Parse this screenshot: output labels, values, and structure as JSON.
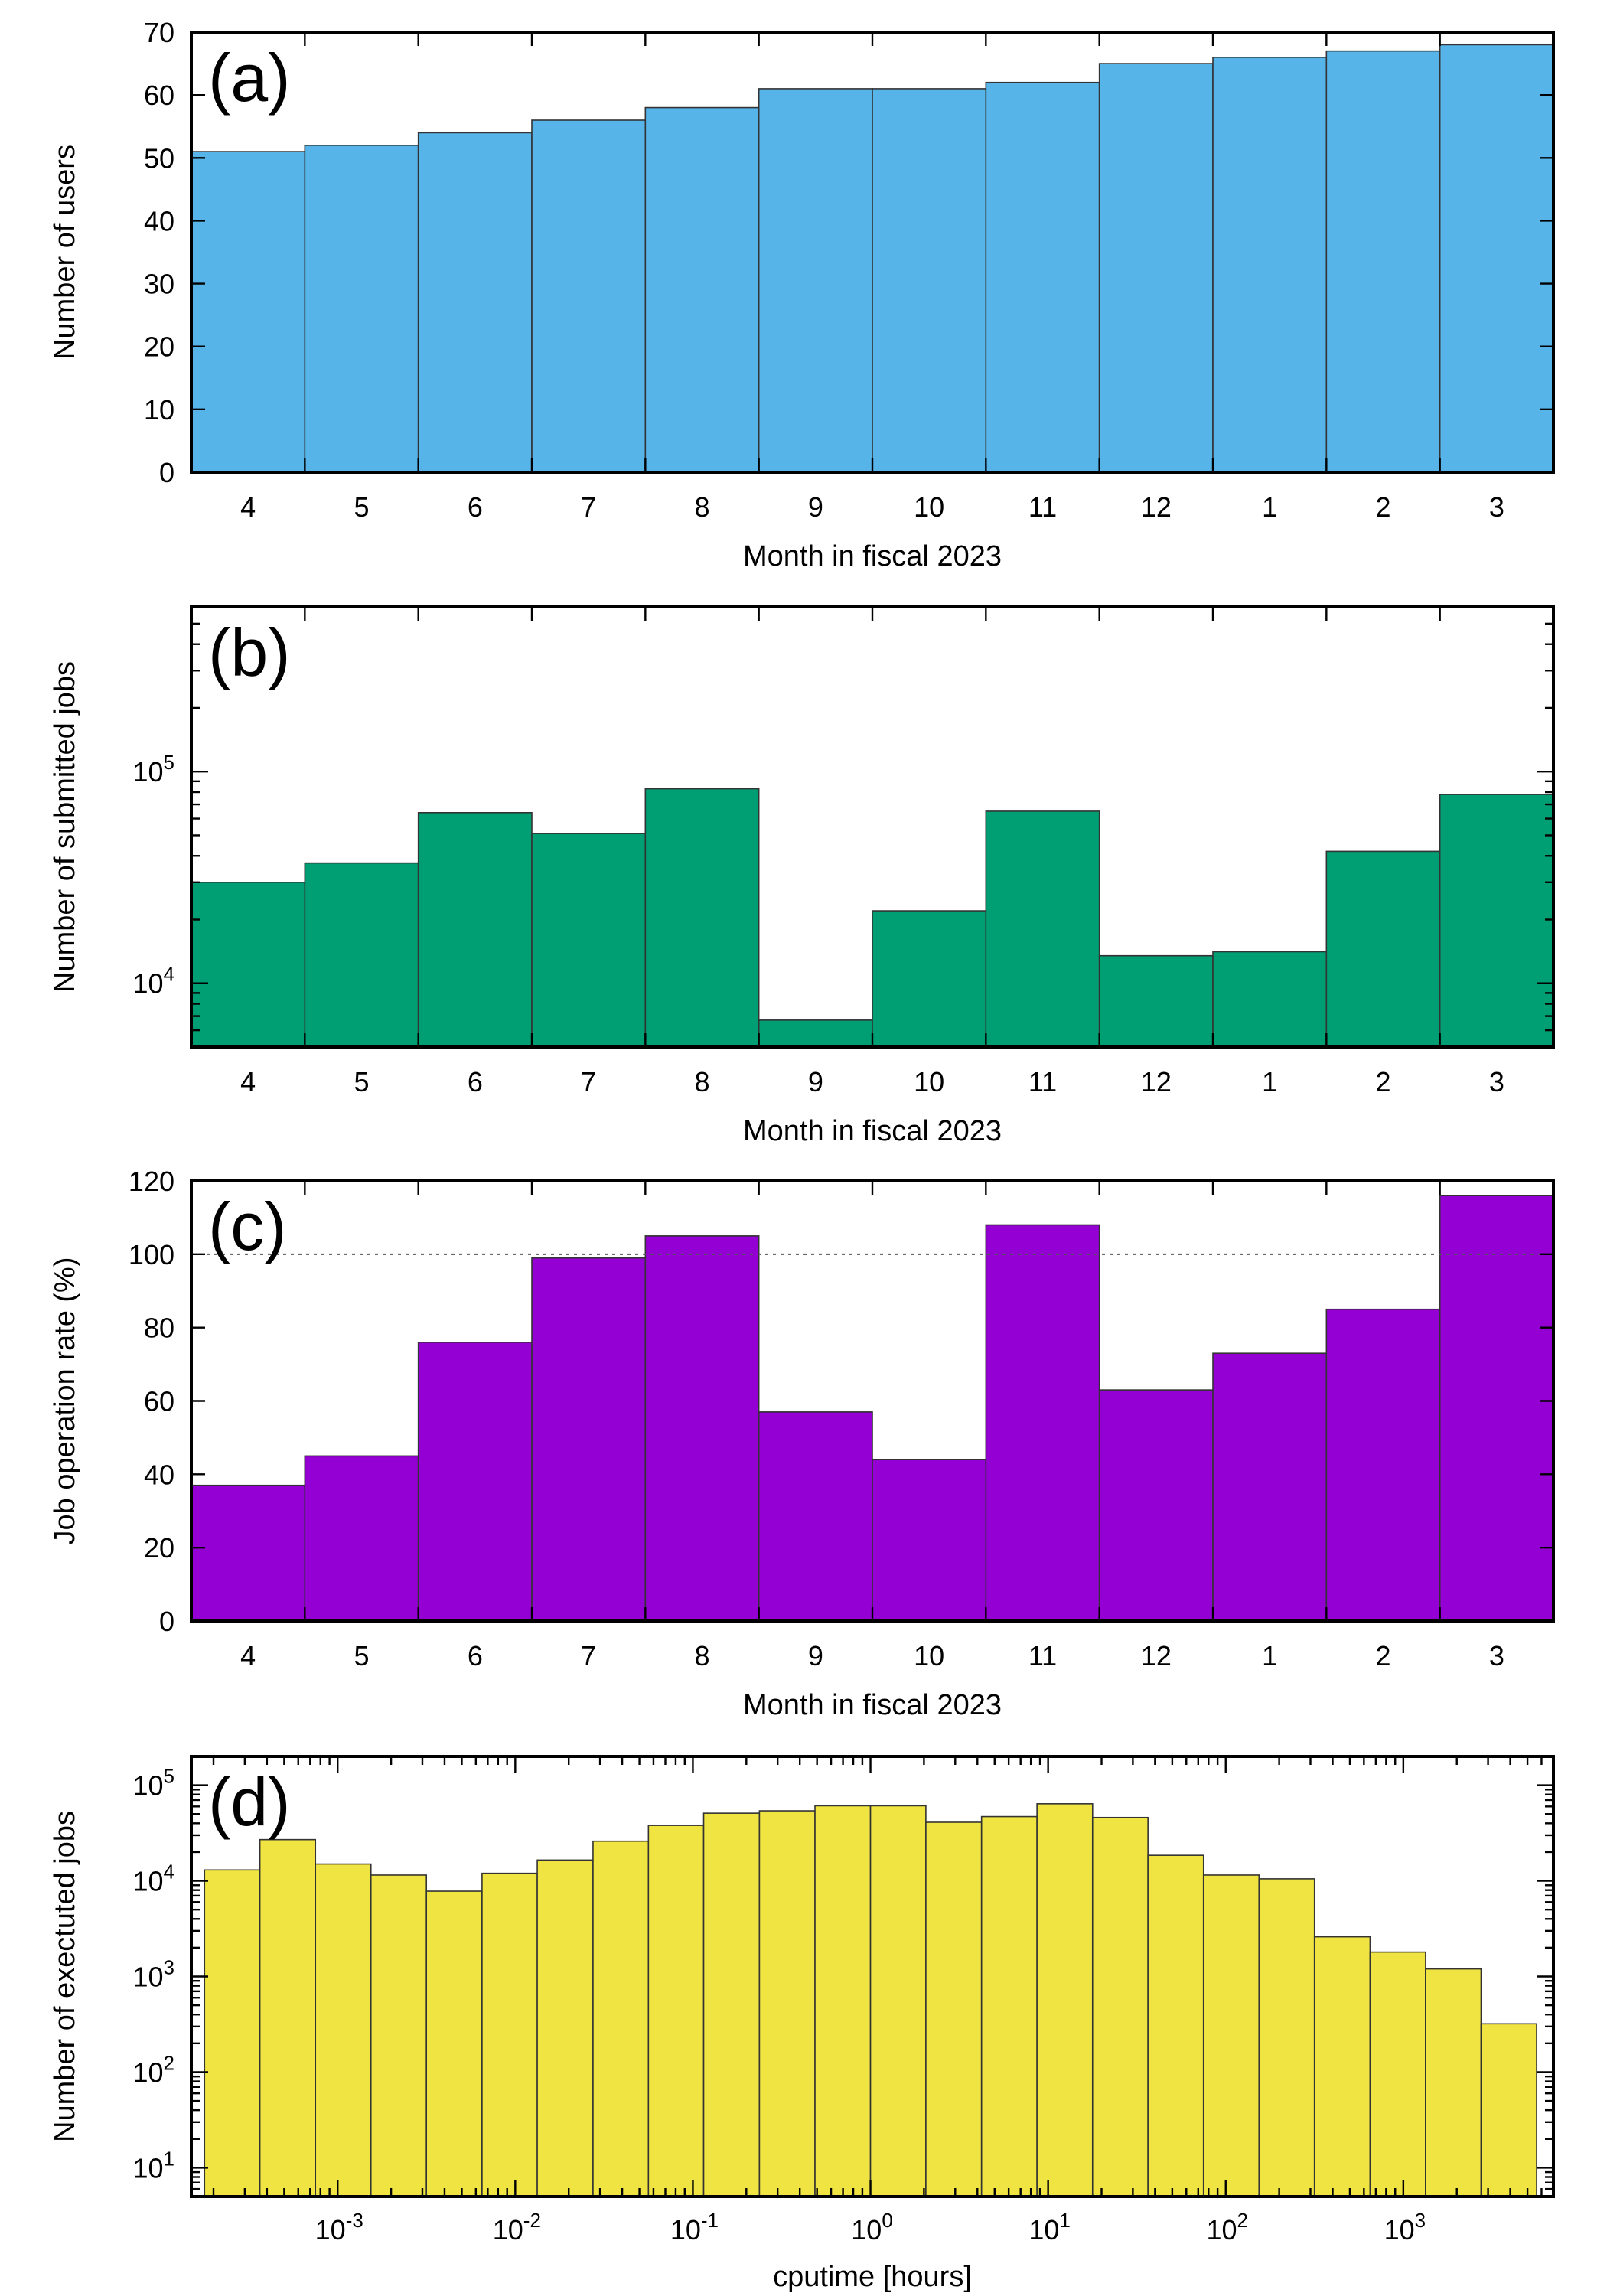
{
  "chart_data": [
    {
      "type": "bar",
      "panel_label": "(a)",
      "categories": [
        "4",
        "5",
        "6",
        "7",
        "8",
        "9",
        "10",
        "11",
        "12",
        "1",
        "2",
        "3"
      ],
      "series": [
        {
          "values": [
            51,
            52,
            54,
            56,
            58,
            61,
            61,
            62,
            65,
            66,
            67,
            68
          ]
        }
      ],
      "xlabel": "Month in fiscal 2023",
      "ylabel": "Number of users",
      "ylim": [
        0,
        70
      ],
      "yticks": [
        0,
        10,
        20,
        30,
        40,
        50,
        60,
        70
      ],
      "yscale": "linear",
      "color": "#56b4e9",
      "grid": false
    },
    {
      "type": "bar",
      "panel_label": "(b)",
      "categories": [
        "4",
        "5",
        "6",
        "7",
        "8",
        "9",
        "10",
        "11",
        "12",
        "1",
        "2",
        "3"
      ],
      "series": [
        {
          "values": [
            30000,
            37000,
            64000,
            51000,
            83000,
            6700,
            22000,
            65000,
            13500,
            14100,
            42000,
            78000
          ]
        }
      ],
      "xlabel": "Month in fiscal 2023",
      "ylabel": "Number of submitted jobs",
      "ylim": [
        5000,
        600000
      ],
      "yscale": "log",
      "ytick_labels": [
        {
          "value": 10000,
          "base": "10",
          "exp": "4"
        },
        {
          "value": 100000,
          "base": "10",
          "exp": "5"
        }
      ],
      "color": "#009e73",
      "grid": false
    },
    {
      "type": "bar",
      "panel_label": "(c)",
      "categories": [
        "4",
        "5",
        "6",
        "7",
        "8",
        "9",
        "10",
        "11",
        "12",
        "1",
        "2",
        "3"
      ],
      "series": [
        {
          "values": [
            37,
            45,
            76,
            99,
            105,
            57,
            44,
            108,
            63,
            73,
            85,
            116
          ]
        }
      ],
      "xlabel": "Month in fiscal 2023",
      "ylabel": "Job operation rate (%)",
      "ylim": [
        0,
        120
      ],
      "yticks": [
        0,
        20,
        40,
        60,
        80,
        100,
        120
      ],
      "reference_line": 100,
      "yscale": "linear",
      "color": "#9400d3",
      "grid": false
    },
    {
      "type": "bar",
      "panel_label": "(d)",
      "xlabel": "cputime [hours]",
      "ylabel": "Number of exectuted jobs",
      "xscale": "log",
      "yscale": "log",
      "xlim": [
        0.00015,
        7000
      ],
      "ylim": [
        5,
        200000
      ],
      "bin_edges": [
        0.000178,
        0.000365,
        0.00075,
        0.00154,
        0.00316,
        0.0065,
        0.0133,
        0.0274,
        0.0562,
        0.115,
        0.237,
        0.487,
        1.0,
        2.05,
        4.22,
        8.66,
        17.8,
        36.5,
        75.0,
        154,
        316,
        650,
        1334,
        2740
      ],
      "values": [
        13000,
        27000,
        15000,
        11500,
        7800,
        12000,
        16500,
        26000,
        38000,
        51000,
        54000,
        61000,
        61000,
        41000,
        47000,
        64000,
        46000,
        18500,
        11500,
        10500,
        2600,
        1800,
        1200,
        320
      ],
      "xtick_labels": [
        {
          "value": 0.001,
          "base": "10",
          "exp": "-3"
        },
        {
          "value": 0.01,
          "base": "10",
          "exp": "-2"
        },
        {
          "value": 0.1,
          "base": "10",
          "exp": "-1"
        },
        {
          "value": 1,
          "base": "10",
          "exp": "0"
        },
        {
          "value": 10,
          "base": "10",
          "exp": "1"
        },
        {
          "value": 100,
          "base": "10",
          "exp": "2"
        },
        {
          "value": 1000,
          "base": "10",
          "exp": "3"
        }
      ],
      "ytick_labels": [
        {
          "value": 10,
          "base": "10",
          "exp": "1"
        },
        {
          "value": 100,
          "base": "10",
          "exp": "2"
        },
        {
          "value": 1000,
          "base": "10",
          "exp": "3"
        },
        {
          "value": 10000,
          "base": "10",
          "exp": "4"
        },
        {
          "value": 100000,
          "base": "10",
          "exp": "5"
        }
      ],
      "color": "#f0e442",
      "grid": false
    }
  ]
}
